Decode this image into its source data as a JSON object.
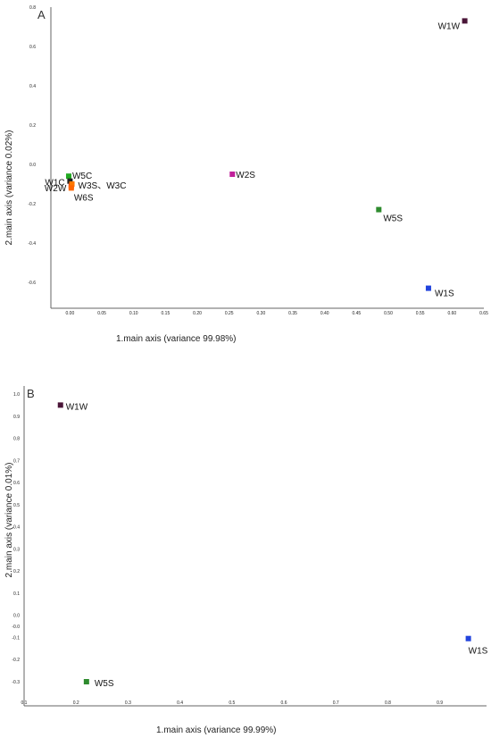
{
  "chart_data": [
    {
      "type": "scatter",
      "panel": "A",
      "title": "",
      "xlabel": "1.main axis (variance 99.98%)",
      "ylabel": "2.main axis (variance 0.02%)",
      "xlim": [
        -0.03,
        0.65
      ],
      "ylim": [
        -0.7,
        0.8
      ],
      "xticks": [
        "0.00",
        "0.05",
        "0.10",
        "0.15",
        "0.20",
        "0.25",
        "0.30",
        "0.35",
        "0.40",
        "0.45",
        "0.50",
        "0.55",
        "0.60",
        "0.65"
      ],
      "xtick_values": [
        0,
        0.05,
        0.1,
        0.15,
        0.2,
        0.25,
        0.3,
        0.35,
        0.4,
        0.45,
        0.5,
        0.55,
        0.6,
        0.65
      ],
      "yticks": [
        "0.8",
        "0.6",
        "0.4",
        "0.2",
        "0.0",
        "-0.2",
        "-0.4",
        "-0.6"
      ],
      "ytick_values": [
        0.8,
        0.6,
        0.4,
        0.2,
        0,
        -0.2,
        -0.4,
        -0.6
      ],
      "grid": false,
      "points": [
        {
          "label": "W1W",
          "x": 0.62,
          "y": 0.73,
          "color": "#4a1538"
        },
        {
          "label": "W2S",
          "x": 0.255,
          "y": -0.05,
          "color": "#c0209a"
        },
        {
          "label": "W5S",
          "x": 0.485,
          "y": -0.23,
          "color": "#2e8b2e"
        },
        {
          "label": "W1S",
          "x": 0.563,
          "y": -0.63,
          "color": "#2244dd"
        },
        {
          "label": "W5C",
          "x": -0.002,
          "y": -0.06,
          "color": "#22aa22"
        },
        {
          "label": "W1C",
          "x": 0.0,
          "y": -0.085,
          "color": "#222222"
        },
        {
          "label": "W2W",
          "x": 0.002,
          "y": -0.11,
          "color": "#dd2222"
        },
        {
          "label": "W3S、W3C",
          "x": 0.003,
          "y": -0.1,
          "color": "#ff7700"
        },
        {
          "label": "W6S",
          "x": 0.002,
          "y": -0.12,
          "color": "#ff6600"
        }
      ]
    },
    {
      "type": "scatter",
      "panel": "B",
      "title": "",
      "xlabel": "1.main axis (variance 99.99%)",
      "ylabel": "2.main axis (variance 0.01%)",
      "xlim": [
        0.1,
        0.99
      ],
      "ylim": [
        -0.33,
        1.03
      ],
      "xticks": [
        "0.1",
        "0.2",
        "0.3",
        "0.4",
        "0.5",
        "0.6",
        "0.7",
        "0.8",
        "0.9"
      ],
      "xtick_values": [
        0.1,
        0.2,
        0.3,
        0.4,
        0.5,
        0.6,
        0.7,
        0.8,
        0.9
      ],
      "yticks": [
        "1.0",
        "0.9",
        "0.8",
        "0.7",
        "0.6",
        "0.5",
        "0.4",
        "0.3",
        "0.2",
        "0.1",
        "0.0",
        "-0.0",
        "-0.1",
        "-0.2",
        "-0.3"
      ],
      "ytick_values": [
        1.0,
        0.9,
        0.8,
        0.7,
        0.6,
        0.5,
        0.4,
        0.3,
        0.2,
        0.1,
        0.0,
        -0.05,
        -0.1,
        -0.2,
        -0.3
      ],
      "grid": false,
      "points": [
        {
          "label": "W1W",
          "x": 0.17,
          "y": 0.95,
          "color": "#4a1538"
        },
        {
          "label": "W5S",
          "x": 0.22,
          "y": -0.3,
          "color": "#2e8b2e"
        },
        {
          "label": "W1S",
          "x": 0.955,
          "y": -0.105,
          "color": "#2244dd"
        }
      ]
    }
  ]
}
